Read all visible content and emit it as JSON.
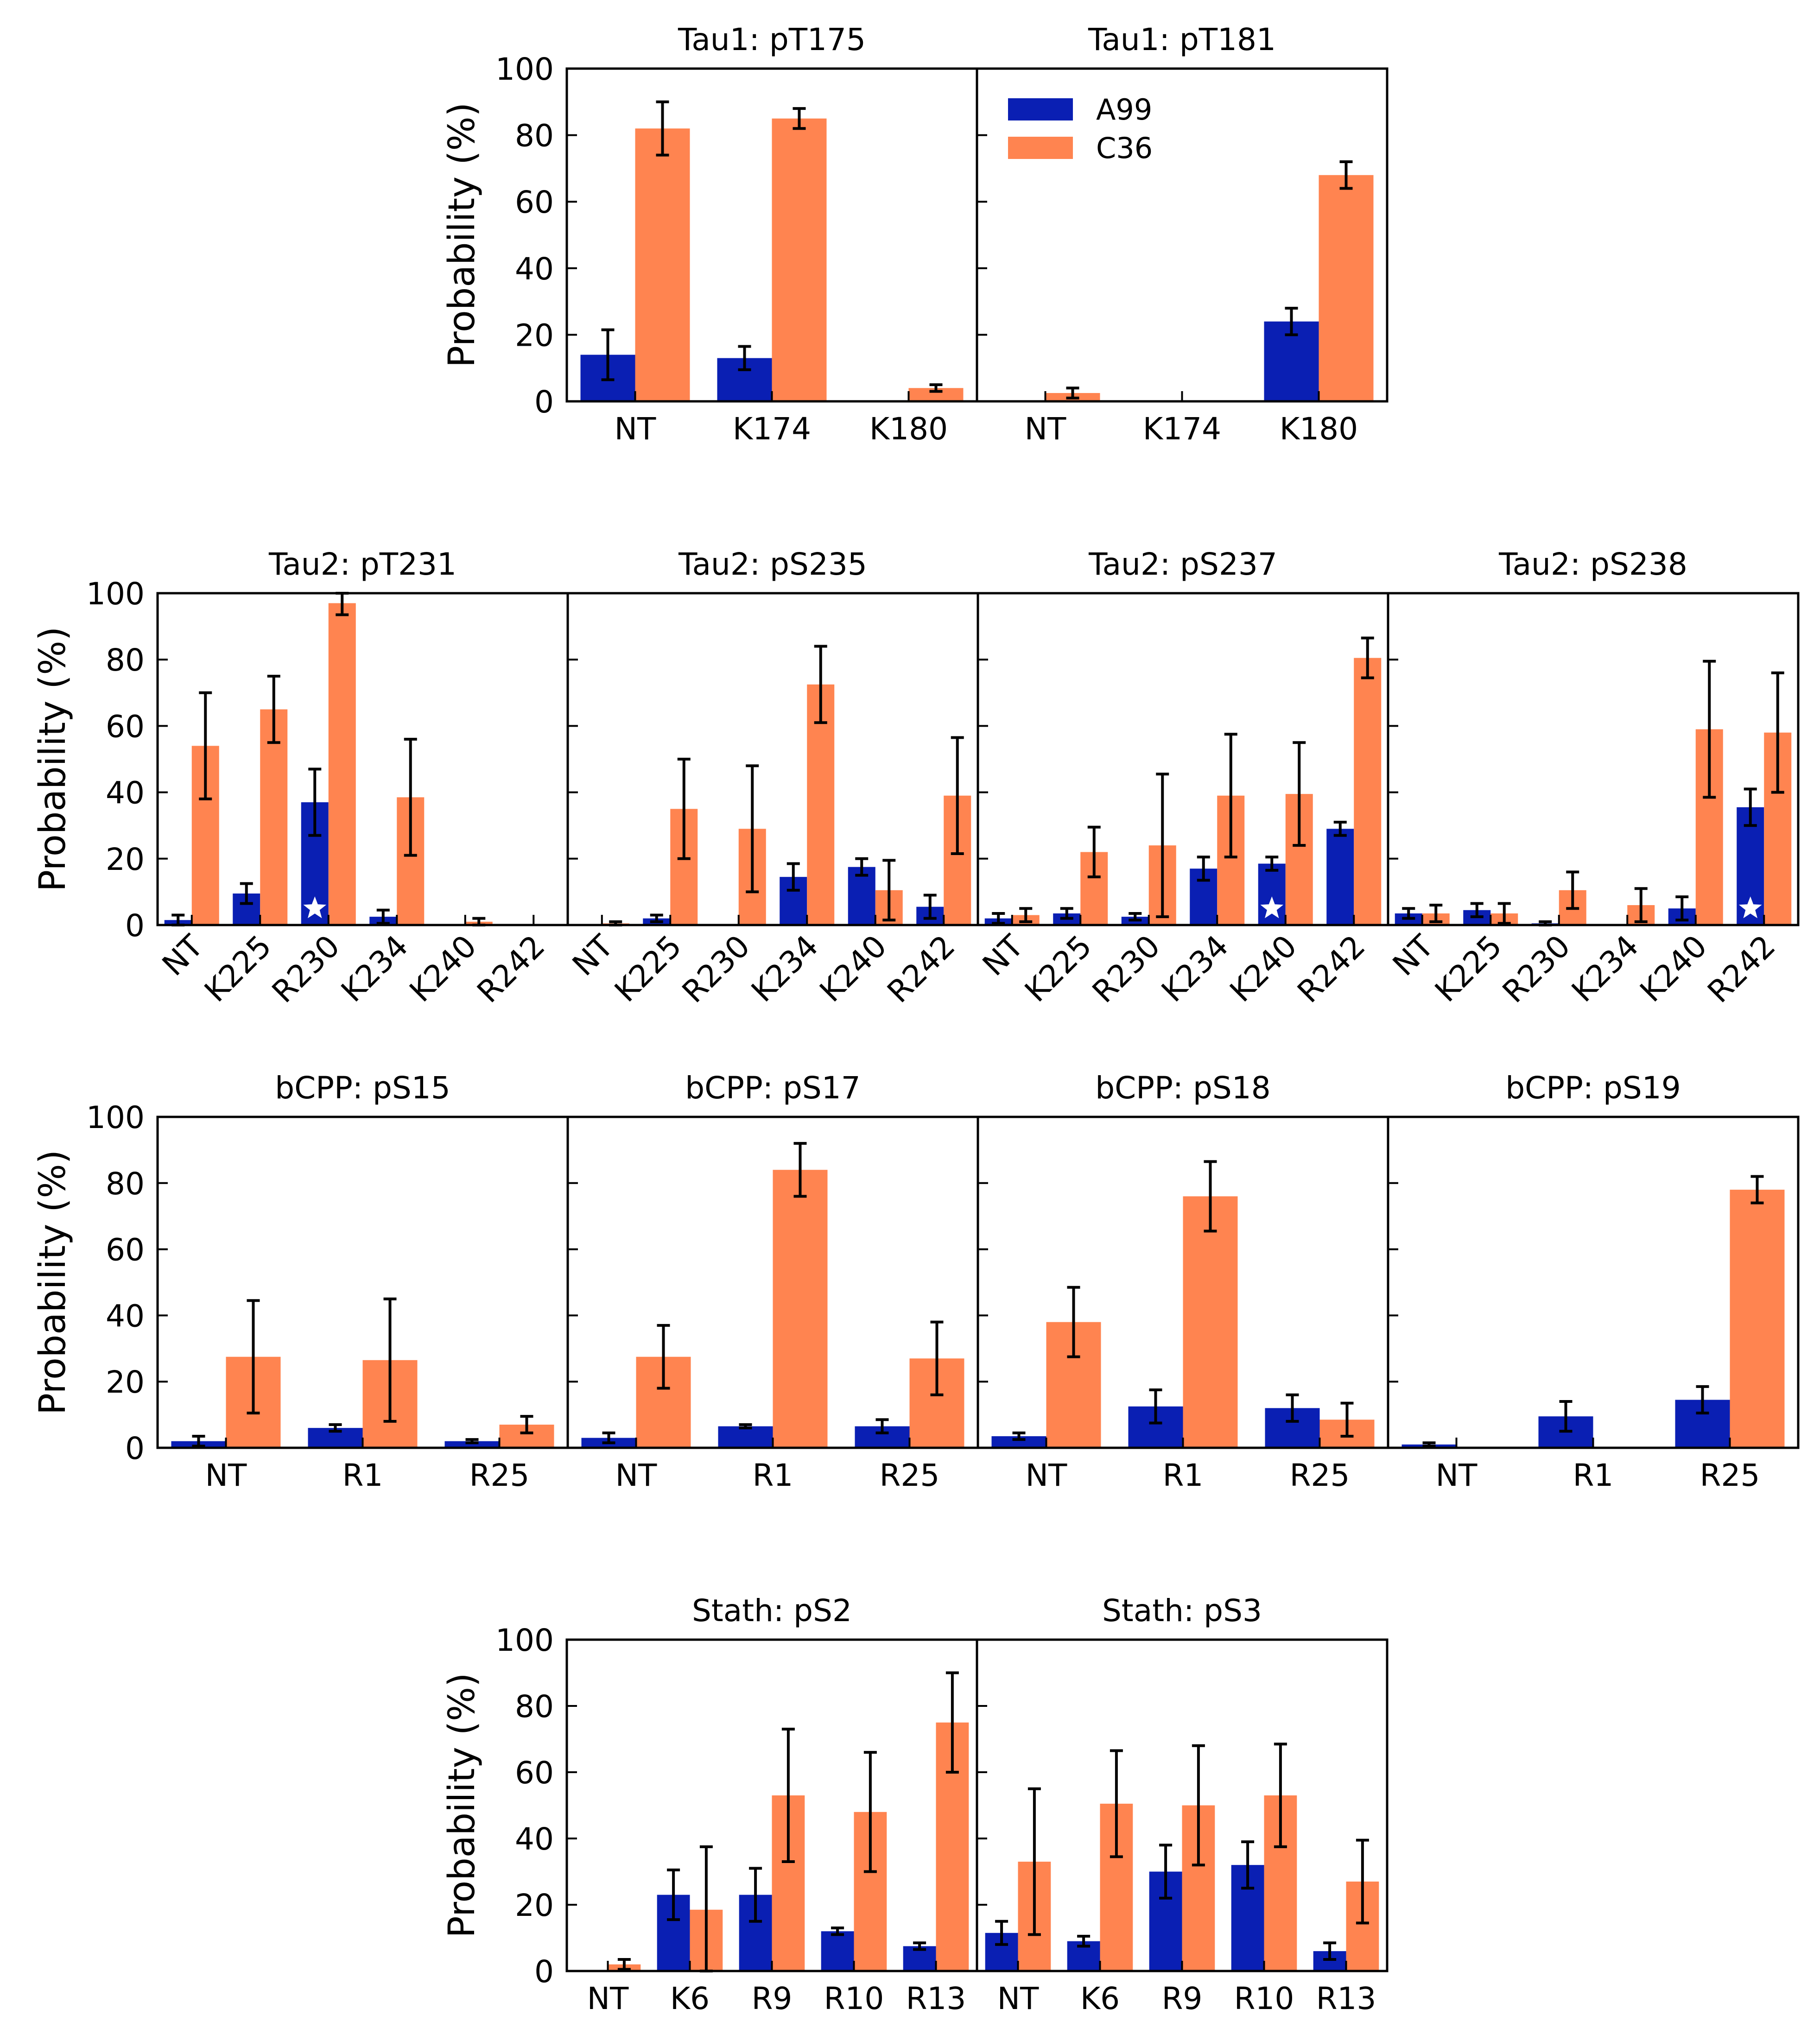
{
  "colors": {
    "A99": "#0a1fb3",
    "C36": "#ff8450"
  },
  "legend": [
    {
      "name": "A99",
      "color": "#0a1fb3"
    },
    {
      "name": "C36",
      "color": "#ff8450"
    }
  ],
  "ylabel": "Probability (%)",
  "chart_data": [
    {
      "type": "bar",
      "group": "row1",
      "panel": 0,
      "title": "Tau1: pT175",
      "categories": [
        "NT",
        "K174",
        "K180"
      ],
      "ylim": [
        0,
        100
      ],
      "yticks": [
        0,
        20,
        40,
        60,
        80,
        100
      ],
      "series": [
        {
          "name": "A99",
          "values": [
            14,
            13,
            0
          ],
          "errors": [
            7.5,
            3.5,
            0
          ]
        },
        {
          "name": "C36",
          "values": [
            82,
            85,
            4
          ],
          "errors": [
            8,
            3,
            1
          ]
        }
      ],
      "stars": []
    },
    {
      "type": "bar",
      "group": "row1",
      "panel": 1,
      "title": "Tau1: pT181",
      "categories": [
        "NT",
        "K174",
        "K180"
      ],
      "ylim": [
        0,
        100
      ],
      "yticks": [
        0,
        20,
        40,
        60,
        80,
        100
      ],
      "series": [
        {
          "name": "A99",
          "values": [
            0,
            0,
            24
          ],
          "errors": [
            0,
            0,
            4
          ]
        },
        {
          "name": "C36",
          "values": [
            2.5,
            0,
            68
          ],
          "errors": [
            1.5,
            0,
            4
          ]
        }
      ],
      "stars": []
    },
    {
      "type": "bar",
      "group": "row2",
      "panel": 0,
      "title": "Tau2: pT231",
      "categories": [
        "NT",
        "K225",
        "R230",
        "K234",
        "K240",
        "R242"
      ],
      "ylim": [
        0,
        100
      ],
      "yticks": [
        0,
        20,
        40,
        60,
        80,
        100
      ],
      "series": [
        {
          "name": "A99",
          "values": [
            1.5,
            9.5,
            37,
            2.5,
            0,
            0
          ],
          "errors": [
            1.5,
            3,
            10,
            2,
            0,
            0
          ]
        },
        {
          "name": "C36",
          "values": [
            54,
            65,
            97,
            38.5,
            1,
            0
          ],
          "errors": [
            16,
            10,
            3.5,
            17.5,
            1,
            0
          ]
        }
      ],
      "stars": [
        "R230"
      ]
    },
    {
      "type": "bar",
      "group": "row2",
      "panel": 1,
      "title": "Tau2: pS235",
      "categories": [
        "NT",
        "K225",
        "R230",
        "K234",
        "K240",
        "R242"
      ],
      "ylim": [
        0,
        100
      ],
      "yticks": [
        0,
        20,
        40,
        60,
        80,
        100
      ],
      "series": [
        {
          "name": "A99",
          "values": [
            0,
            2,
            0,
            14.5,
            17.5,
            5.5
          ],
          "errors": [
            0,
            1,
            0,
            4,
            2.5,
            3.5
          ]
        },
        {
          "name": "C36",
          "values": [
            0.5,
            35,
            29,
            72.5,
            10.5,
            39
          ],
          "errors": [
            0.5,
            15,
            19,
            11.5,
            9,
            17.5
          ]
        }
      ],
      "stars": []
    },
    {
      "type": "bar",
      "group": "row2",
      "panel": 2,
      "title": "Tau2: pS237",
      "categories": [
        "NT",
        "K225",
        "R230",
        "K234",
        "K240",
        "R242"
      ],
      "ylim": [
        0,
        100
      ],
      "yticks": [
        0,
        20,
        40,
        60,
        80,
        100
      ],
      "series": [
        {
          "name": "A99",
          "values": [
            2,
            3.5,
            2.5,
            17,
            18.5,
            29
          ],
          "errors": [
            1.5,
            1.5,
            1,
            3.5,
            2,
            2
          ]
        },
        {
          "name": "C36",
          "values": [
            3,
            22,
            24,
            39,
            39.5,
            80.5
          ],
          "errors": [
            2,
            7.5,
            21.5,
            18.5,
            15.5,
            6
          ]
        }
      ],
      "stars": [
        "K240"
      ]
    },
    {
      "type": "bar",
      "group": "row2",
      "panel": 3,
      "title": "Tau2: pS238",
      "categories": [
        "NT",
        "K225",
        "R230",
        "K234",
        "K240",
        "R242"
      ],
      "ylim": [
        0,
        100
      ],
      "yticks": [
        0,
        20,
        40,
        60,
        80,
        100
      ],
      "series": [
        {
          "name": "A99",
          "values": [
            3.5,
            4.5,
            0.5,
            0,
            5,
            35.5
          ],
          "errors": [
            1.5,
            2,
            0.5,
            0,
            3.5,
            5.5
          ]
        },
        {
          "name": "C36",
          "values": [
            3.5,
            3.5,
            10.5,
            6,
            59,
            58
          ],
          "errors": [
            2.5,
            3,
            5.5,
            5,
            20.5,
            18
          ]
        }
      ],
      "stars": [
        "R242"
      ]
    },
    {
      "type": "bar",
      "group": "row3",
      "panel": 0,
      "title": "bCPP: pS15",
      "categories": [
        "NT",
        "R1",
        "R25"
      ],
      "ylim": [
        0,
        100
      ],
      "yticks": [
        0,
        20,
        40,
        60,
        80,
        100
      ],
      "series": [
        {
          "name": "A99",
          "values": [
            2,
            6,
            2
          ],
          "errors": [
            1.5,
            1,
            0.5
          ]
        },
        {
          "name": "C36",
          "values": [
            27.5,
            26.5,
            7
          ],
          "errors": [
            17,
            18.5,
            2.5
          ]
        }
      ],
      "stars": []
    },
    {
      "type": "bar",
      "group": "row3",
      "panel": 1,
      "title": "bCPP: pS17",
      "categories": [
        "NT",
        "R1",
        "R25"
      ],
      "ylim": [
        0,
        100
      ],
      "yticks": [
        0,
        20,
        40,
        60,
        80,
        100
      ],
      "series": [
        {
          "name": "A99",
          "values": [
            3,
            6.5,
            6.5
          ],
          "errors": [
            1.5,
            0.5,
            2
          ]
        },
        {
          "name": "C36",
          "values": [
            27.5,
            84,
            27
          ],
          "errors": [
            9.5,
            8,
            11
          ]
        }
      ],
      "stars": []
    },
    {
      "type": "bar",
      "group": "row3",
      "panel": 2,
      "title": "bCPP: pS18",
      "categories": [
        "NT",
        "R1",
        "R25"
      ],
      "ylim": [
        0,
        100
      ],
      "yticks": [
        0,
        20,
        40,
        60,
        80,
        100
      ],
      "series": [
        {
          "name": "A99",
          "values": [
            3.5,
            12.5,
            12
          ],
          "errors": [
            1,
            5,
            4
          ]
        },
        {
          "name": "C36",
          "values": [
            38,
            76,
            8.5
          ],
          "errors": [
            10.5,
            10.5,
            5
          ]
        }
      ],
      "stars": []
    },
    {
      "type": "bar",
      "group": "row3",
      "panel": 3,
      "title": "bCPP: pS19",
      "categories": [
        "NT",
        "R1",
        "R25"
      ],
      "ylim": [
        0,
        100
      ],
      "yticks": [
        0,
        20,
        40,
        60,
        80,
        100
      ],
      "series": [
        {
          "name": "A99",
          "values": [
            1,
            9.5,
            14.5
          ],
          "errors": [
            0.5,
            4.5,
            4
          ]
        },
        {
          "name": "C36",
          "values": [
            0,
            0,
            78
          ],
          "errors": [
            0,
            0,
            4
          ]
        }
      ],
      "stars": []
    },
    {
      "type": "bar",
      "group": "row4",
      "panel": 0,
      "title": "Stath: pS2",
      "categories": [
        "NT",
        "K6",
        "R9",
        "R10",
        "R13"
      ],
      "ylim": [
        0,
        100
      ],
      "yticks": [
        0,
        20,
        40,
        60,
        80,
        100
      ],
      "series": [
        {
          "name": "A99",
          "values": [
            0,
            23,
            23,
            12,
            7.5
          ],
          "errors": [
            0,
            7.5,
            8,
            1,
            1
          ]
        },
        {
          "name": "C36",
          "values": [
            2,
            18.5,
            53,
            48,
            75
          ],
          "errors": [
            1.5,
            19,
            20,
            18,
            15
          ]
        }
      ],
      "stars": []
    },
    {
      "type": "bar",
      "group": "row4",
      "panel": 1,
      "title": "Stath: pS3",
      "categories": [
        "NT",
        "K6",
        "R9",
        "R10",
        "R13"
      ],
      "ylim": [
        0,
        100
      ],
      "yticks": [
        0,
        20,
        40,
        60,
        80,
        100
      ],
      "series": [
        {
          "name": "A99",
          "values": [
            11.5,
            9,
            30,
            32,
            6
          ],
          "errors": [
            3.5,
            1.5,
            8,
            7,
            2.5
          ]
        },
        {
          "name": "C36",
          "values": [
            33,
            50.5,
            50,
            53,
            27
          ],
          "errors": [
            22,
            16,
            18,
            15.5,
            12.5
          ]
        }
      ],
      "stars": []
    }
  ]
}
